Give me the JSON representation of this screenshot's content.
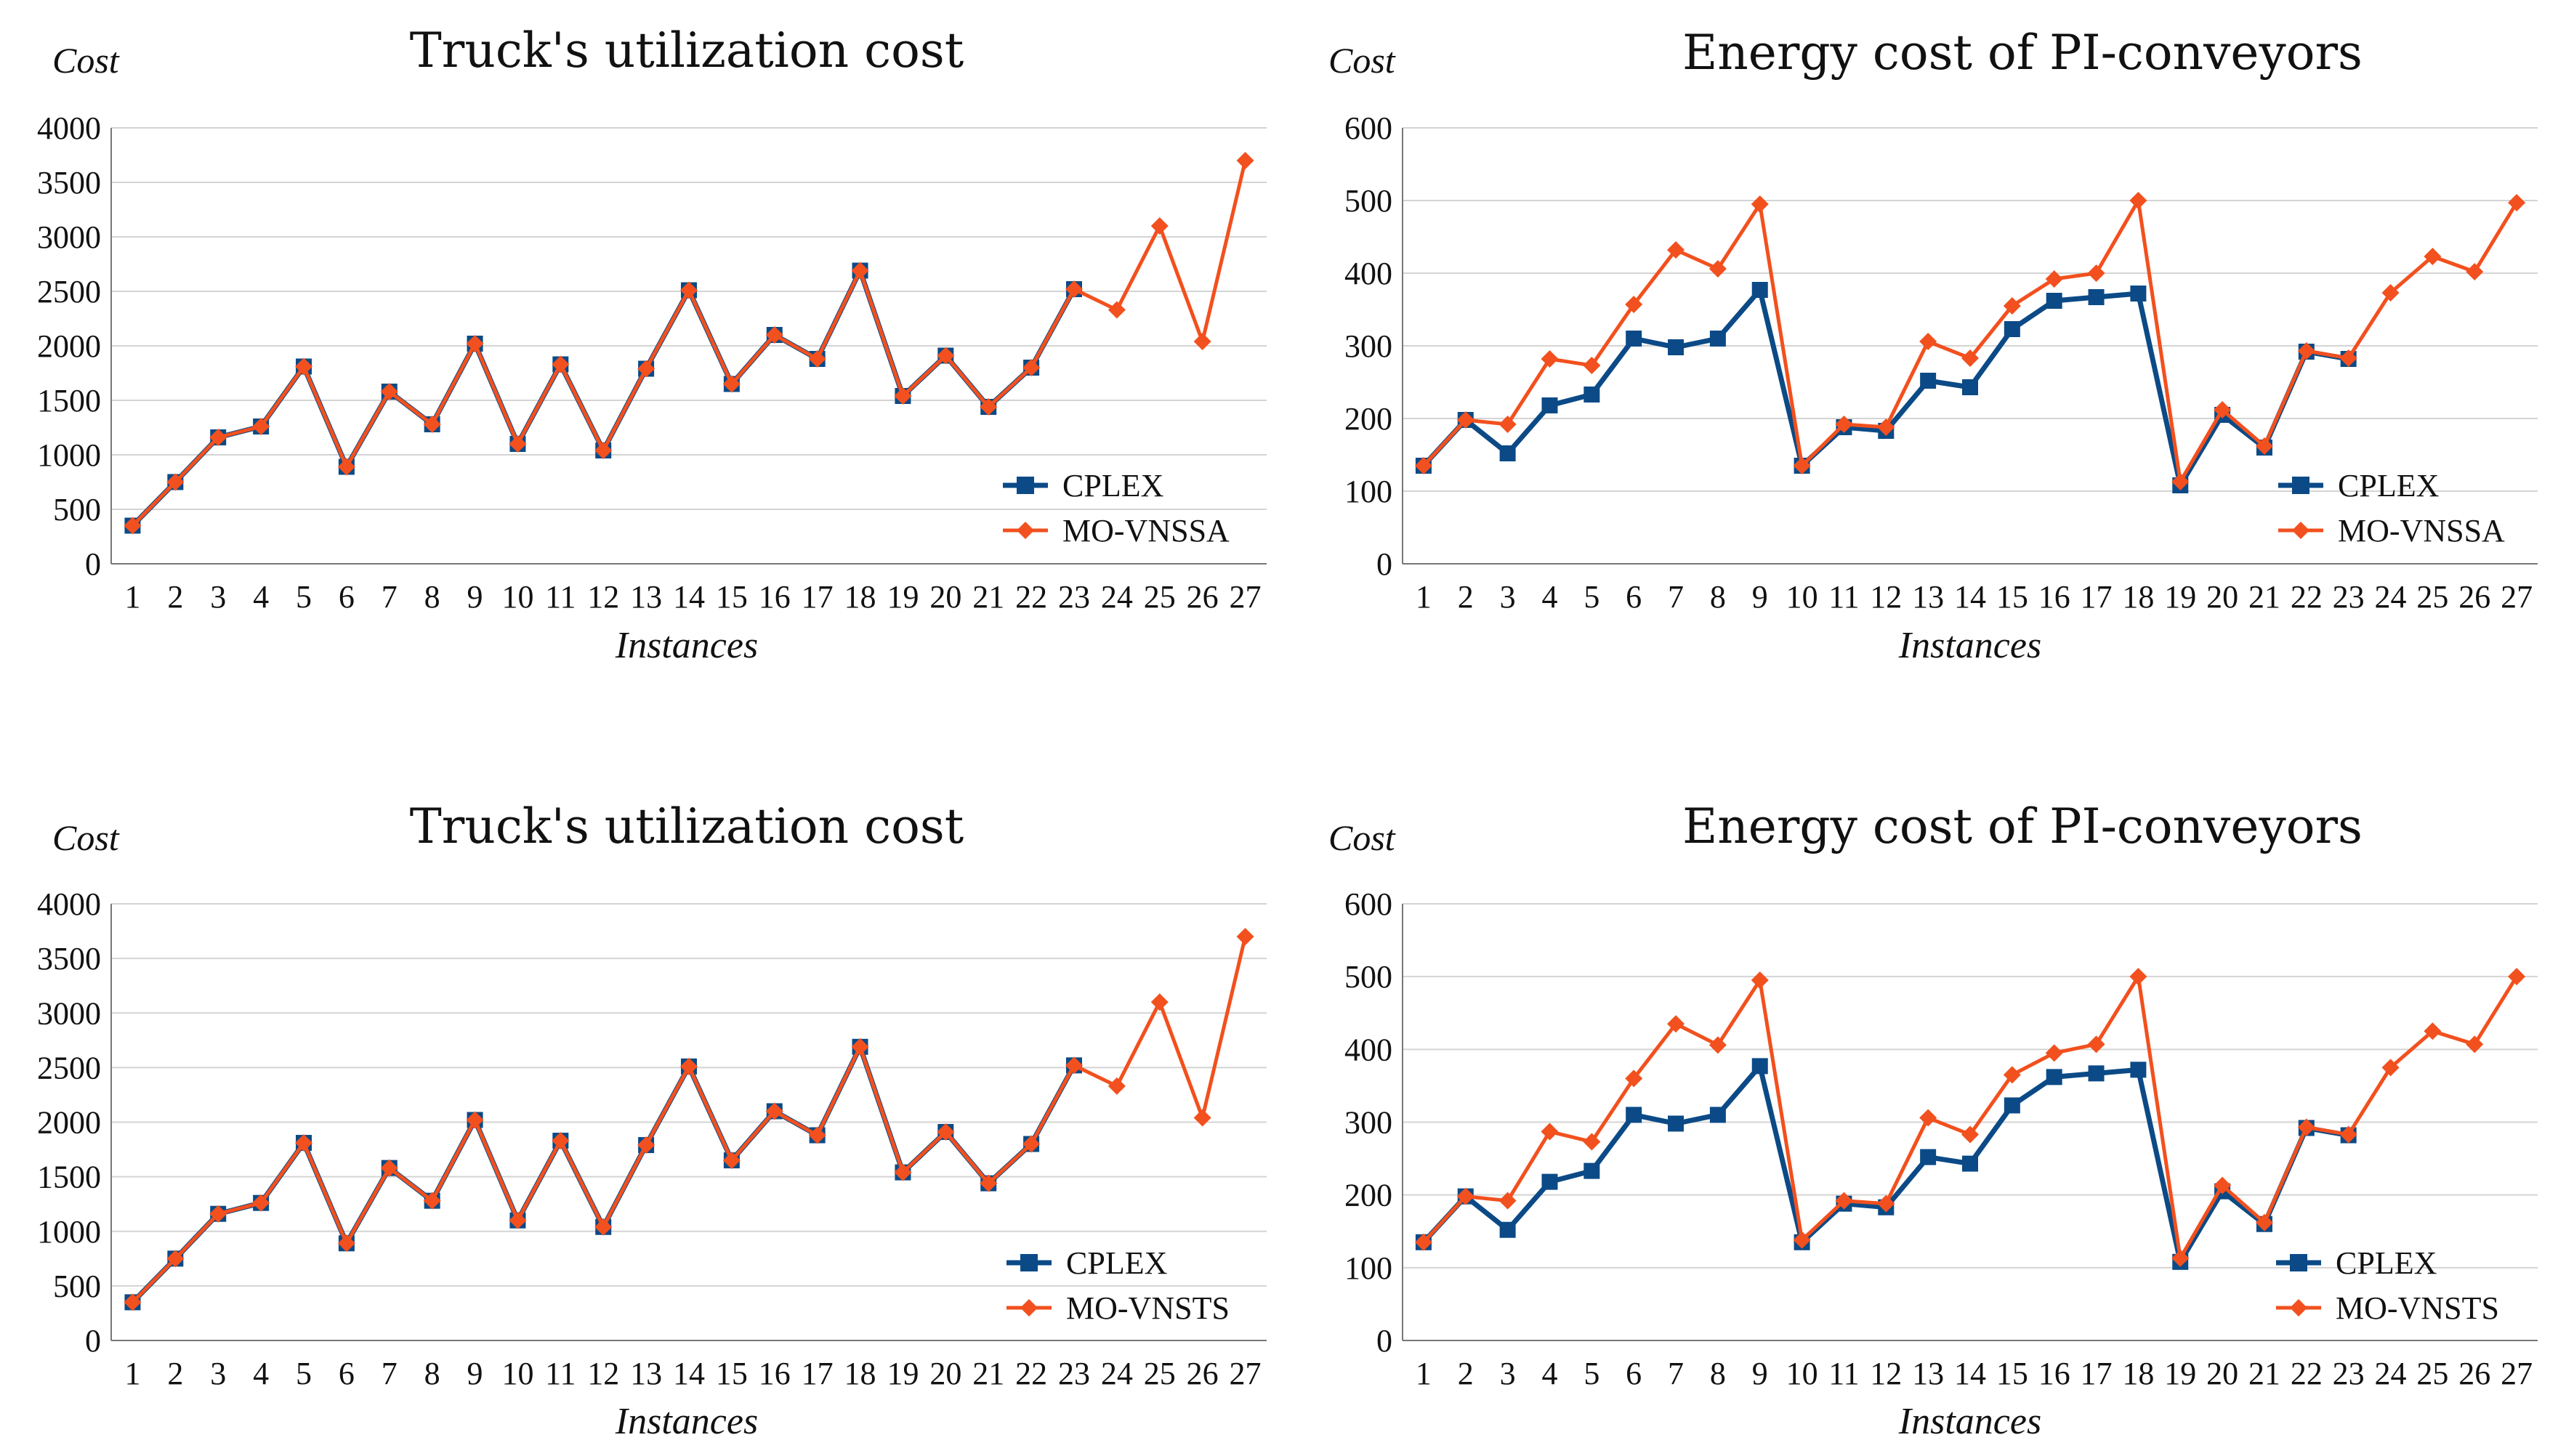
{
  "chart_data": [
    {
      "type": "line",
      "title": "Truck's utilization cost",
      "ylabel": "Cost",
      "xlabel": "Instances",
      "ylim": [
        0,
        4000
      ],
      "yticks": [
        0,
        500,
        1000,
        1500,
        2000,
        2500,
        3000,
        3500,
        4000
      ],
      "x": [
        1,
        2,
        3,
        4,
        5,
        6,
        7,
        8,
        9,
        10,
        11,
        12,
        13,
        14,
        15,
        16,
        17,
        18,
        19,
        20,
        21,
        22,
        23,
        24,
        25,
        26,
        27
      ],
      "series": [
        {
          "name": "CPLEX",
          "color": "#0b4a86",
          "marker": "square",
          "values": [
            350,
            750,
            1160,
            1260,
            1810,
            890,
            1580,
            1280,
            2020,
            1100,
            1830,
            1040,
            1790,
            2510,
            1650,
            2100,
            1880,
            2690,
            1540,
            1910,
            1440,
            1800,
            2520,
            null,
            null,
            null,
            null
          ]
        },
        {
          "name": "MO-VNSSA",
          "color": "#f2501e",
          "marker": "diamond",
          "values": [
            350,
            750,
            1160,
            1260,
            1810,
            890,
            1580,
            1280,
            2020,
            1100,
            1830,
            1040,
            1790,
            2510,
            1650,
            2100,
            1880,
            2690,
            1540,
            1910,
            1440,
            1800,
            2520,
            2330,
            3100,
            2040,
            3700
          ]
        }
      ]
    },
    {
      "type": "line",
      "title": "Energy cost of PI-conveyors",
      "ylabel": "Cost",
      "xlabel": "Instances",
      "ylim": [
        0,
        600
      ],
      "yticks": [
        0,
        100,
        200,
        300,
        400,
        500,
        600
      ],
      "x": [
        1,
        2,
        3,
        4,
        5,
        6,
        7,
        8,
        9,
        10,
        11,
        12,
        13,
        14,
        15,
        16,
        17,
        18,
        19,
        20,
        21,
        22,
        23,
        24,
        25,
        26,
        27
      ],
      "series": [
        {
          "name": "CPLEX",
          "color": "#0b4a86",
          "marker": "square",
          "values": [
            135,
            198,
            152,
            218,
            233,
            310,
            298,
            310,
            377,
            135,
            188,
            183,
            252,
            243,
            323,
            362,
            367,
            372,
            108,
            205,
            160,
            292,
            282,
            null,
            null,
            null,
            null
          ]
        },
        {
          "name": "MO-VNSSA",
          "color": "#f2501e",
          "marker": "diamond",
          "values": [
            135,
            198,
            192,
            282,
            273,
            357,
            432,
            406,
            495,
            135,
            192,
            188,
            306,
            283,
            355,
            392,
            400,
            500,
            113,
            212,
            162,
            293,
            283,
            373,
            423,
            402,
            497
          ]
        }
      ]
    },
    {
      "type": "line",
      "title": "Truck's utilization cost",
      "ylabel": "Cost",
      "xlabel": "Instances",
      "ylim": [
        0,
        4000
      ],
      "yticks": [
        0,
        500,
        1000,
        1500,
        2000,
        2500,
        3000,
        3500,
        4000
      ],
      "x": [
        1,
        2,
        3,
        4,
        5,
        6,
        7,
        8,
        9,
        10,
        11,
        12,
        13,
        14,
        15,
        16,
        17,
        18,
        19,
        20,
        21,
        22,
        23,
        24,
        25,
        26,
        27
      ],
      "series": [
        {
          "name": "CPLEX",
          "color": "#0b4a86",
          "marker": "square",
          "values": [
            350,
            750,
            1160,
            1260,
            1810,
            890,
            1580,
            1280,
            2020,
            1100,
            1830,
            1040,
            1790,
            2510,
            1650,
            2100,
            1880,
            2690,
            1540,
            1910,
            1440,
            1800,
            2520,
            null,
            null,
            null,
            null
          ]
        },
        {
          "name": "MO-VNSTS",
          "color": "#f2501e",
          "marker": "diamond",
          "values": [
            350,
            750,
            1160,
            1260,
            1810,
            890,
            1580,
            1280,
            2020,
            1100,
            1830,
            1040,
            1790,
            2510,
            1650,
            2100,
            1880,
            2690,
            1540,
            1910,
            1440,
            1800,
            2520,
            2330,
            3100,
            2040,
            3700
          ]
        }
      ]
    },
    {
      "type": "line",
      "title": "Energy cost of PI-conveyors",
      "ylabel": "Cost",
      "xlabel": "Instances",
      "ylim": [
        0,
        600
      ],
      "yticks": [
        0,
        100,
        200,
        300,
        400,
        500,
        600
      ],
      "x": [
        1,
        2,
        3,
        4,
        5,
        6,
        7,
        8,
        9,
        10,
        11,
        12,
        13,
        14,
        15,
        16,
        17,
        18,
        19,
        20,
        21,
        22,
        23,
        24,
        25,
        26,
        27
      ],
      "series": [
        {
          "name": "CPLEX",
          "color": "#0b4a86",
          "marker": "square",
          "values": [
            135,
            198,
            152,
            218,
            233,
            310,
            298,
            310,
            377,
            135,
            188,
            183,
            252,
            243,
            323,
            362,
            367,
            372,
            108,
            205,
            160,
            292,
            282,
            null,
            null,
            null,
            null
          ]
        },
        {
          "name": "MO-VNSTS",
          "color": "#f2501e",
          "marker": "diamond",
          "values": [
            135,
            198,
            192,
            287,
            273,
            360,
            435,
            406,
            495,
            138,
            192,
            188,
            306,
            283,
            365,
            395,
            407,
            500,
            113,
            213,
            162,
            293,
            283,
            375,
            425,
            407,
            500
          ]
        }
      ]
    }
  ]
}
